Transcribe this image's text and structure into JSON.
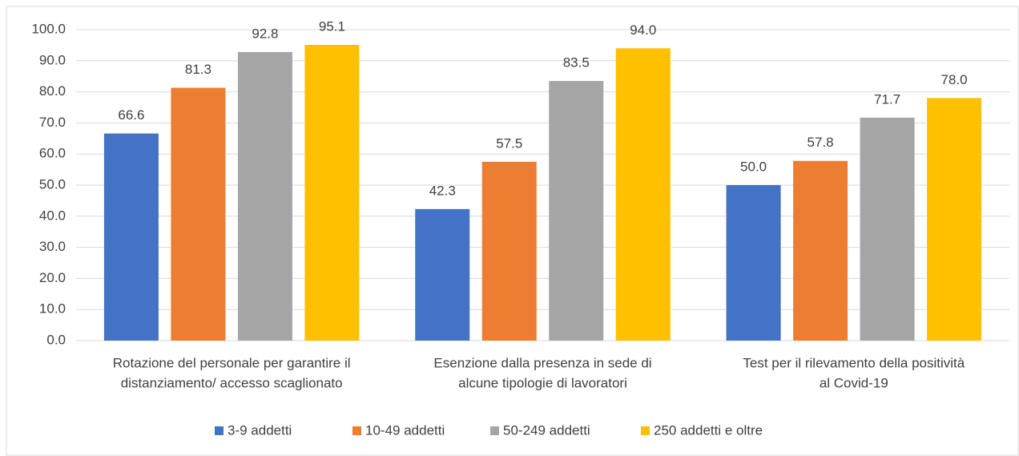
{
  "chart_data": {
    "type": "bar",
    "categories": [
      [
        "Rotazione del personale per garantire il",
        "distanziamento/ accesso scaglionato"
      ],
      [
        "Esenzione dalla presenza in sede di",
        "alcune tipologie di lavoratori"
      ],
      [
        "Test per il rilevamento della positività",
        "al Covid-19"
      ]
    ],
    "series": [
      {
        "name": "3-9 addetti",
        "color": "#4472c4",
        "values": [
          66.6,
          42.3,
          50.0
        ],
        "value_labels": [
          "66.6",
          "42.3",
          "50.0"
        ]
      },
      {
        "name": "10-49 addetti",
        "color": "#ed7d31",
        "values": [
          81.3,
          57.5,
          57.8
        ],
        "value_labels": [
          "81.3",
          "57.5",
          "57.8"
        ]
      },
      {
        "name": "50-249 addetti",
        "color": "#a5a5a5",
        "values": [
          92.8,
          83.5,
          71.7
        ],
        "value_labels": [
          "92.8",
          "83.5",
          "71.7"
        ]
      },
      {
        "name": "250 addetti e oltre",
        "color": "#ffc000",
        "values": [
          95.1,
          94.0,
          78.0
        ],
        "value_labels": [
          "95.1",
          "94.0",
          "78.0"
        ]
      }
    ],
    "ylim": [
      0,
      100
    ],
    "yticks": [
      {
        "value": 0,
        "label": "0.0"
      },
      {
        "value": 10,
        "label": "10.0"
      },
      {
        "value": 20,
        "label": "20.0"
      },
      {
        "value": 30,
        "label": "30.0"
      },
      {
        "value": 40,
        "label": "40.0"
      },
      {
        "value": 50,
        "label": "50.0"
      },
      {
        "value": 60,
        "label": "60.0"
      },
      {
        "value": 70,
        "label": "70.0"
      },
      {
        "value": 80,
        "label": "80.0"
      },
      {
        "value": 90,
        "label": "90.0"
      },
      {
        "value": 100,
        "label": "100.0"
      }
    ],
    "grid": true,
    "legend": "bottom"
  }
}
